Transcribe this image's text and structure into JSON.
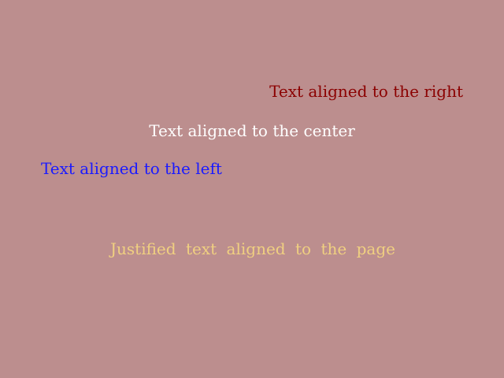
{
  "lines": [
    "Text aligned to the right",
    "Text aligned to the center",
    "Text aligned to the left",
    "Justified text aligned to the page"
  ]
}
